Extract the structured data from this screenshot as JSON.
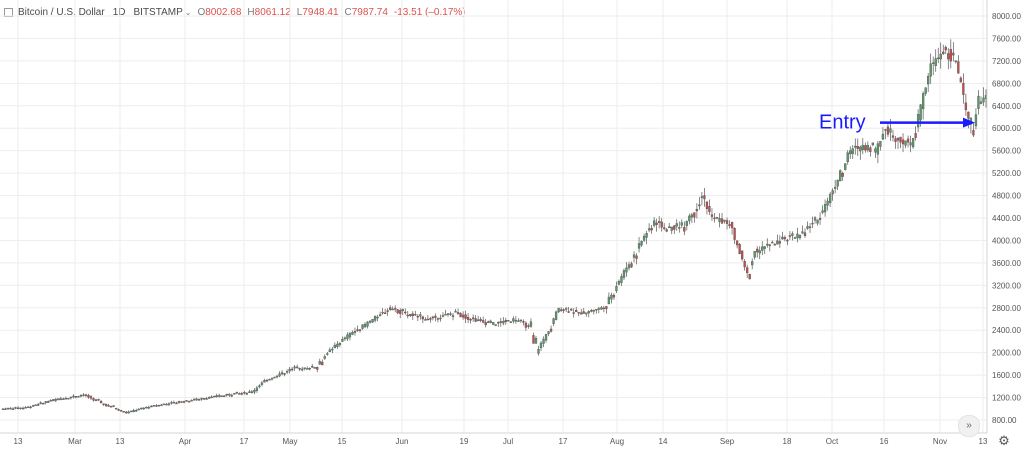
{
  "header": {
    "symbol": "Bitcoin / U.S. Dollar",
    "interval": "1D",
    "exchange": "BITSTAMP",
    "open_label": "O",
    "open": "8002.68",
    "high_label": "H",
    "high": "8061.12",
    "low_label": "L",
    "low": "7948.41",
    "close_label": "C",
    "close": "7987.74",
    "change": "-13.51 (–0.17%)"
  },
  "annotation": {
    "text": "Entry",
    "color": "#1a1aff"
  },
  "colors": {
    "up": "#5b9a68",
    "down": "#c34f4c",
    "grid": "#eeeeee",
    "axis_text": "#555555"
  },
  "controls": {
    "scroll_icon": "double-chevron-right-icon",
    "settings_icon": "gear-icon"
  },
  "chart_data": {
    "type": "candlestick",
    "y_axis_labels": [
      "8000.00",
      "7600.00",
      "7200.00",
      "6800.00",
      "6400.00",
      "6000.00",
      "5600.00",
      "5200.00",
      "4800.00",
      "4400.00",
      "4000.00",
      "3600.00",
      "3200.00",
      "2800.00",
      "2400.00",
      "2000.00",
      "1600.00",
      "1200.00",
      "800.00"
    ],
    "ylim": [
      600,
      8100
    ],
    "x_axis_labels": [
      "13",
      "Mar",
      "13",
      "Apr",
      "17",
      "May",
      "15",
      "Jun",
      "19",
      "Jul",
      "17",
      "Aug",
      "14",
      "Sep",
      "18",
      "Oct",
      "16",
      "Nov",
      "13"
    ],
    "date_range": [
      "2017-02-01",
      "2017-11-13"
    ],
    "grid": true,
    "anchors": [
      [
        0,
        1000
      ],
      [
        10,
        1020
      ],
      [
        20,
        1150
      ],
      [
        33,
        1250
      ],
      [
        40,
        1100
      ],
      [
        50,
        930
      ],
      [
        60,
        1050
      ],
      [
        75,
        1150
      ],
      [
        90,
        1250
      ],
      [
        100,
        1300
      ],
      [
        105,
        1500
      ],
      [
        115,
        1700
      ],
      [
        125,
        1750
      ],
      [
        130,
        2000
      ],
      [
        138,
        2300
      ],
      [
        145,
        2500
      ],
      [
        155,
        2800
      ],
      [
        160,
        2700
      ],
      [
        170,
        2600
      ],
      [
        180,
        2700
      ],
      [
        195,
        2500
      ],
      [
        205,
        2600
      ],
      [
        210,
        2450
      ],
      [
        213,
        2000
      ],
      [
        218,
        2400
      ],
      [
        222,
        2800
      ],
      [
        230,
        2700
      ],
      [
        240,
        2800
      ],
      [
        245,
        3200
      ],
      [
        250,
        3600
      ],
      [
        255,
        4000
      ],
      [
        260,
        4350
      ],
      [
        265,
        4200
      ],
      [
        272,
        4300
      ],
      [
        279,
        4800
      ],
      [
        283,
        4400
      ],
      [
        290,
        4300
      ],
      [
        297,
        3400
      ],
      [
        300,
        3800
      ],
      [
        305,
        3900
      ],
      [
        310,
        4000
      ],
      [
        318,
        4100
      ],
      [
        325,
        4400
      ],
      [
        330,
        4800
      ],
      [
        335,
        5300
      ],
      [
        338,
        5600
      ],
      [
        343,
        5700
      ],
      [
        348,
        5600
      ],
      [
        352,
        6000
      ],
      [
        357,
        5800
      ],
      [
        362,
        5700
      ],
      [
        365,
        6200
      ],
      [
        370,
        7100
      ],
      [
        375,
        7400
      ],
      [
        380,
        7200
      ],
      [
        384,
        6300
      ],
      [
        386,
        5900
      ],
      [
        389,
        6500
      ],
      [
        391,
        6550
      ]
    ],
    "entry_price": 6100
  }
}
